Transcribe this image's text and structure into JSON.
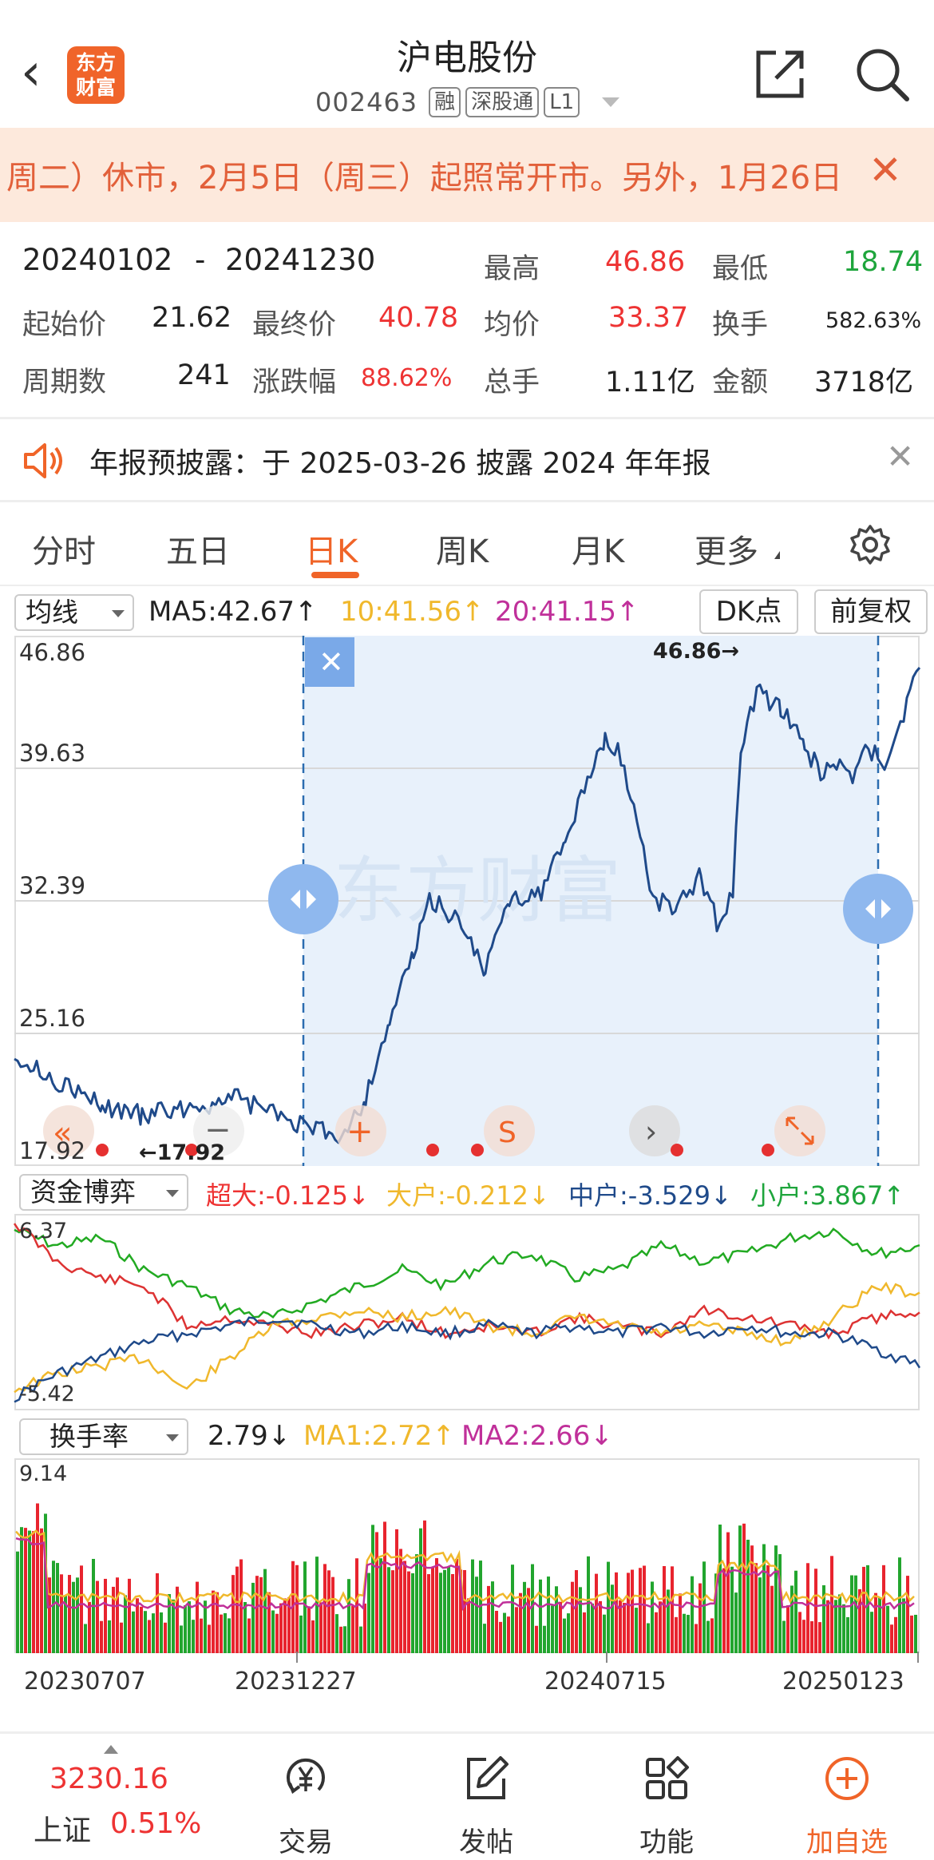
{
  "header": {
    "back_glyph": "‹",
    "logo_line1": "东方",
    "logo_line2": "财富",
    "title": "沪电股份",
    "code": "002463",
    "tags": [
      "融",
      "深股通",
      "L1"
    ]
  },
  "notice": {
    "text": "周二）休市，2月5日（周三）起照常开市。另外，1月26日",
    "close": "✕"
  },
  "stats": {
    "range_start": "20240102",
    "range_sep": "-",
    "range_end": "20241230",
    "high_label": "最高",
    "high_value": "46.86",
    "low_label": "最低",
    "low_value": "18.74",
    "open_label": "起始价",
    "open_value": "21.62",
    "close_label": "最终价",
    "close_value": "40.78",
    "avg_label": "均价",
    "avg_value": "33.37",
    "turnover_label": "换手",
    "turnover_value": "582.63%",
    "periods_label": "周期数",
    "periods_value": "241",
    "change_label": "涨跌幅",
    "change_value": "88.62%",
    "volume_label": "总手",
    "volume_value": "1.11亿",
    "amount_label": "金额",
    "amount_value": "3718亿"
  },
  "announcement": {
    "text": "年报预披露：于 2025-03-26 披露 2024 年年报",
    "close": "✕"
  },
  "tabs": [
    "分时",
    "五日",
    "日K",
    "周K",
    "月K",
    "更多"
  ],
  "active_tab": "日K",
  "ma_row": {
    "selector": "均线",
    "ma5": "MA5:42.67↑",
    "ma10": "10:41.56↑",
    "ma20": "20:41.15↑",
    "dk_button": "DK点",
    "adjust_button": "前复权"
  },
  "price_chart": {
    "y_labels": [
      "46.86",
      "39.63",
      "32.39",
      "25.16",
      "17.92"
    ],
    "max_marker": "46.86→",
    "min_marker": "←17.92",
    "close_btn": "✕",
    "colors": {
      "line": "#1f4a8a",
      "selection": "#e8f1fb",
      "handle": "#8fb8ee"
    }
  },
  "fund_row": {
    "selector": "资金博弈",
    "super": "超大:-0.125↓",
    "large": "大户:-0.212↓",
    "medium": "中户:-3.529↓",
    "small": "小户:3.867↑",
    "y_top": "6.37",
    "y_bottom": "-5.42"
  },
  "turnover_row": {
    "selector": "换手率",
    "value": "2.79↓",
    "ma1": "MA1:2.72↑",
    "ma2": "MA2:2.66↓",
    "y_top": "9.14"
  },
  "x_axis": [
    "20230707",
    "20231227",
    "20240715",
    "20250123"
  ],
  "bottom_nav": {
    "index_value": "3230.16",
    "index_name": "上证",
    "index_change": "0.51%",
    "trade": "交易",
    "post": "发帖",
    "function": "功能",
    "add": "加自选"
  }
}
